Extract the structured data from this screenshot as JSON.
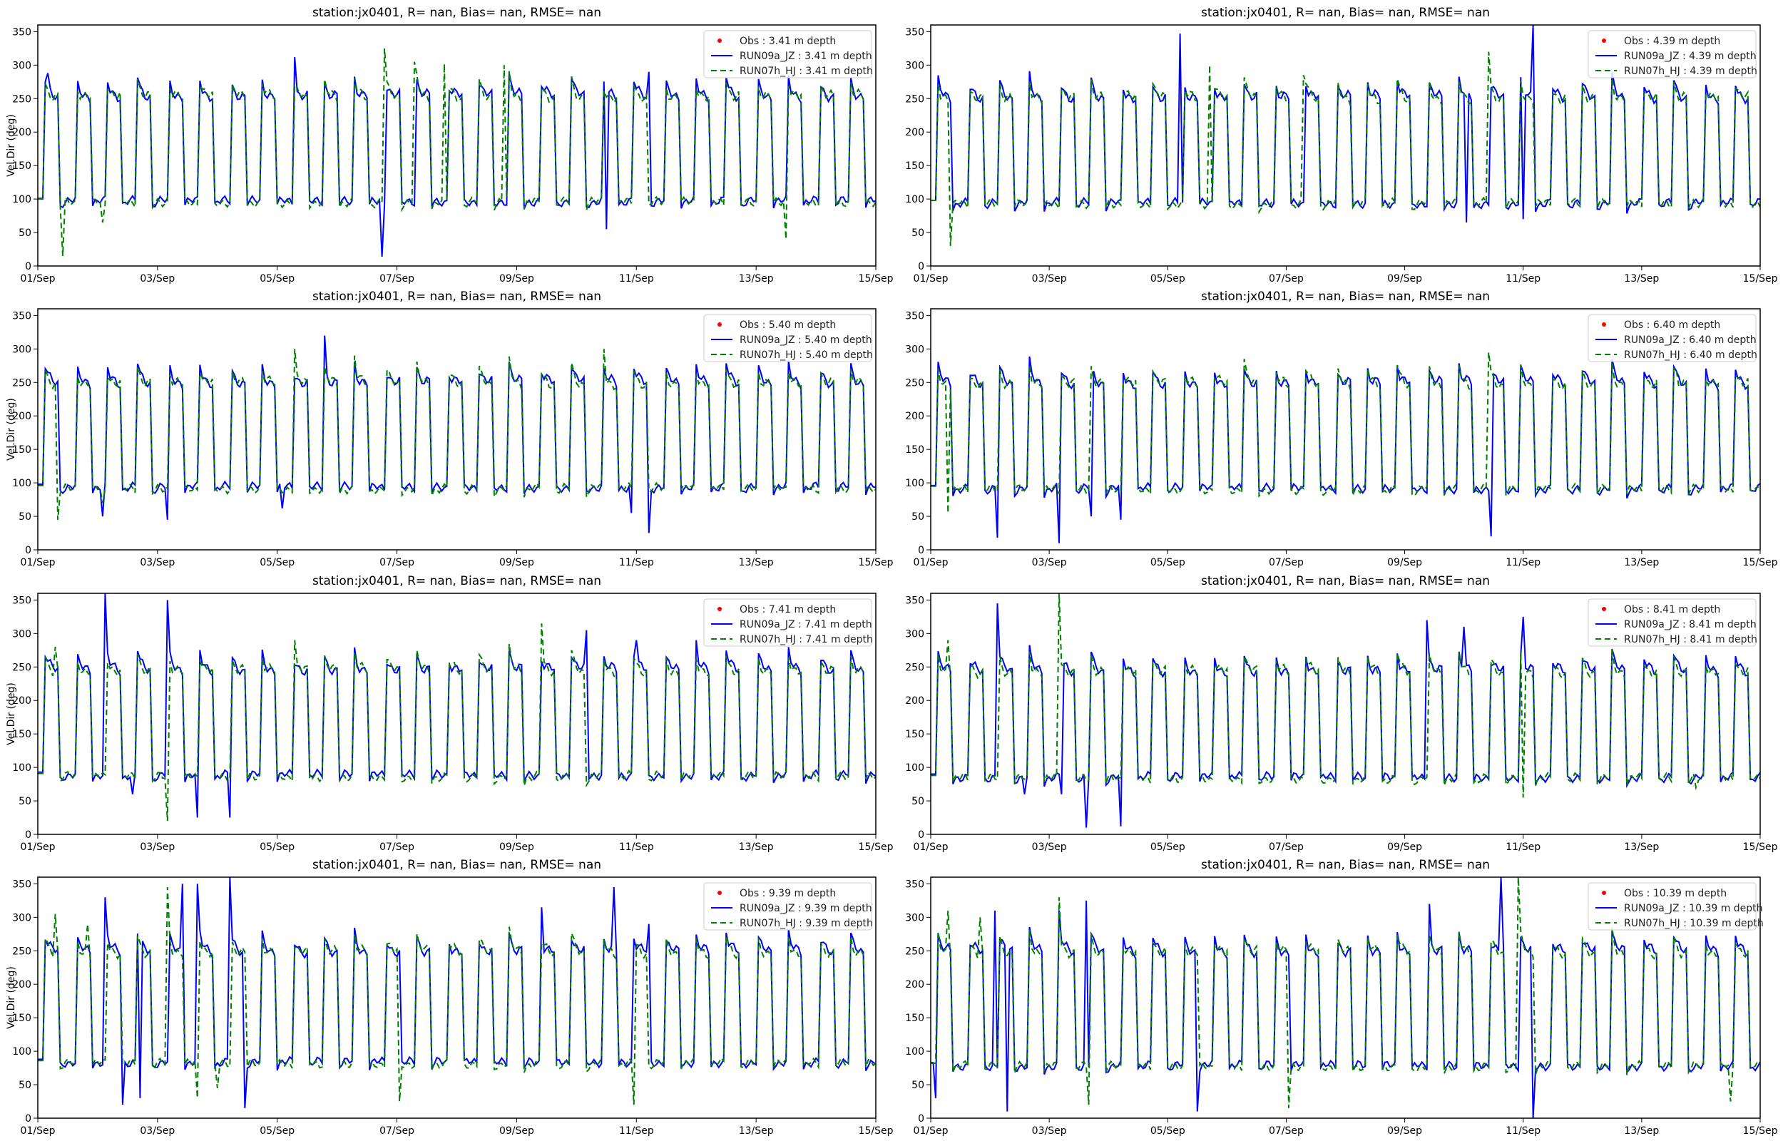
{
  "chart_data": {
    "type": "line",
    "layout": "4x2 grid",
    "x_ticks": [
      "01/Sep",
      "03/Sep",
      "05/Sep",
      "07/Sep",
      "09/Sep",
      "11/Sep",
      "13/Sep",
      "15/Sep"
    ],
    "xlim_days": [
      0,
      14
    ],
    "ylim": [
      0,
      360
    ],
    "y_ticks": [
      0,
      50,
      100,
      150,
      200,
      250,
      300,
      350
    ],
    "ylabel": "Vel.Dir (deg)",
    "legend_placement": "top-right",
    "tidal_period_hours": 12.42,
    "first_rise_hours": 2.7,
    "high_duration_hours": 6.0,
    "colors": {
      "obs": "#ff0000",
      "run09a": "#0000ff",
      "run07h": "#008000"
    },
    "panels": [
      {
        "title": "station:jx0401, R=   nan, Bias=    nan, RMSE=    nan",
        "legend": [
          "Obs : 3.41 m depth",
          "RUN09a_JZ : 3.41 m depth",
          "RUN07h_HJ : 3.41 m depth"
        ],
        "ylabel_shown": true,
        "series": [
          {
            "name": "RUN09a_JZ",
            "high": 260,
            "low": 93,
            "spikes": [
              [
                5.75,
                14
              ],
              [
                4.3,
                312
              ],
              [
                10.2,
                290
              ],
              [
                9.5,
                55
              ],
              [
                0.15,
                288
              ]
            ]
          },
          {
            "name": "RUN07h_HJ",
            "high": 258,
            "low": 92,
            "spikes": [
              [
                0.4,
                15
              ],
              [
                5.8,
                325
              ],
              [
                12.5,
                40
              ],
              [
                6.3,
                305
              ],
              [
                6.8,
                302
              ],
              [
                7.8,
                300
              ],
              [
                1.1,
                65
              ]
            ]
          }
        ]
      },
      {
        "title": "station:jx0401, R=   nan, Bias=    nan, RMSE=    nan",
        "legend": [
          "Obs : 4.39 m depth",
          "RUN09a_JZ : 4.39 m depth",
          "RUN07h_HJ : 4.39 m depth"
        ],
        "ylabel_shown": false,
        "series": [
          {
            "name": "RUN09a_JZ",
            "high": 258,
            "low": 90,
            "spikes": [
              [
                4.2,
                347
              ],
              [
                10.17,
                360
              ],
              [
                9.05,
                65
              ],
              [
                10.0,
                70
              ]
            ]
          },
          {
            "name": "RUN07h_HJ",
            "high": 256,
            "low": 90,
            "spikes": [
              [
                0.33,
                30
              ],
              [
                9.4,
                320
              ],
              [
                4.7,
                300
              ],
              [
                6.3,
                285
              ]
            ]
          }
        ]
      },
      {
        "title": "station:jx0401, R=   nan, Bias=    nan, RMSE=    nan",
        "legend": [
          "Obs : 5.40 m depth",
          "RUN09a_JZ : 5.40 m depth",
          "RUN07h_HJ : 5.40 m depth"
        ],
        "ylabel_shown": true,
        "series": [
          {
            "name": "RUN09a_JZ",
            "high": 256,
            "low": 90,
            "spikes": [
              [
                4.8,
                320
              ],
              [
                10.2,
                25
              ],
              [
                2.16,
                45
              ],
              [
                1.1,
                50
              ],
              [
                4.1,
                62
              ],
              [
                9.9,
                55
              ]
            ]
          },
          {
            "name": "RUN07h_HJ",
            "high": 254,
            "low": 88,
            "spikes": [
              [
                0.33,
                45
              ],
              [
                4.3,
                300
              ],
              [
                9.45,
                300
              ],
              [
                5.3,
                290
              ],
              [
                1.1,
                70
              ]
            ]
          }
        ]
      },
      {
        "title": "station:jx0401, R=   nan, Bias=    nan, RMSE=    nan",
        "legend": [
          "Obs : 6.40 m depth",
          "RUN09a_JZ : 6.40 m depth",
          "RUN07h_HJ : 6.40 m depth"
        ],
        "ylabel_shown": false,
        "series": [
          {
            "name": "RUN09a_JZ",
            "high": 255,
            "low": 88,
            "spikes": [
              [
                2.16,
                10
              ],
              [
                1.12,
                18
              ],
              [
                9.44,
                20
              ],
              [
                3.2,
                45
              ],
              [
                2.7,
                50
              ]
            ]
          },
          {
            "name": "RUN07h_HJ",
            "high": 253,
            "low": 87,
            "spikes": [
              [
                9.42,
                295
              ],
              [
                0.3,
                55
              ],
              [
                5.3,
                285
              ],
              [
                12.6,
                270
              ]
            ]
          }
        ]
      },
      {
        "title": "station:jx0401, R=   nan, Bias=    nan, RMSE=    nan",
        "legend": [
          "Obs : 7.41 m depth",
          "RUN09a_JZ : 7.41 m depth",
          "RUN07h_HJ : 7.41 m depth"
        ],
        "ylabel_shown": true,
        "series": [
          {
            "name": "RUN09a_JZ",
            "high": 252,
            "low": 85,
            "spikes": [
              [
                1.12,
                360
              ],
              [
                2.16,
                350
              ],
              [
                2.66,
                25
              ],
              [
                3.2,
                25
              ],
              [
                9.15,
                305
              ],
              [
                1.6,
                60
              ],
              [
                10.0,
                290
              ],
              [
                11.0,
                290
              ]
            ]
          },
          {
            "name": "RUN07h_HJ",
            "high": 250,
            "low": 83,
            "spikes": [
              [
                2.16,
                20
              ],
              [
                8.42,
                315
              ],
              [
                0.3,
                280
              ],
              [
                4.3,
                290
              ]
            ]
          }
        ]
      },
      {
        "title": "station:jx0401, R=   nan, Bias=    nan, RMSE=    nan",
        "legend": [
          "Obs : 8.41 m depth",
          "RUN09a_JZ : 8.41 m depth",
          "RUN07h_HJ : 8.41 m depth"
        ],
        "ylabel_shown": false,
        "series": [
          {
            "name": "RUN09a_JZ",
            "high": 250,
            "low": 82,
            "spikes": [
              [
                1.12,
                345
              ],
              [
                2.64,
                10
              ],
              [
                3.2,
                12
              ],
              [
                8.38,
                320
              ],
              [
                10.0,
                325
              ],
              [
                9.0,
                310
              ],
              [
                1.6,
                60
              ],
              [
                2.2,
                60
              ]
            ]
          },
          {
            "name": "RUN07h_HJ",
            "high": 248,
            "low": 80,
            "spikes": [
              [
                2.16,
                360
              ],
              [
                0.3,
                290
              ],
              [
                10.0,
                55
              ],
              [
                12.9,
                70
              ]
            ]
          }
        ]
      },
      {
        "title": "station:jx0401, R=   nan, Bias=    nan, RMSE=    nan",
        "legend": [
          "Obs : 9.39 m depth",
          "RUN09a_JZ : 9.39 m depth",
          "RUN07h_HJ : 9.39 m depth"
        ],
        "ylabel_shown": true,
        "series": [
          {
            "name": "RUN09a_JZ",
            "high": 255,
            "low": 80,
            "spikes": [
              [
                1.12,
                330
              ],
              [
                2.43,
                350
              ],
              [
                2.68,
                350
              ],
              [
                3.2,
                360
              ],
              [
                3.47,
                15
              ],
              [
                9.63,
                345
              ],
              [
                1.4,
                20
              ],
              [
                1.7,
                30
              ],
              [
                8.4,
                315
              ],
              [
                10.2,
                290
              ]
            ]
          },
          {
            "name": "RUN07h_HJ",
            "high": 253,
            "low": 78,
            "spikes": [
              [
                2.16,
                345
              ],
              [
                2.68,
                30
              ],
              [
                9.94,
                20
              ],
              [
                0.3,
                305
              ],
              [
                0.85,
                290
              ],
              [
                3.0,
                45
              ],
              [
                6.05,
                25
              ]
            ]
          }
        ]
      },
      {
        "title": "station:jx0401, R=   nan, Bias=    nan, RMSE=    nan",
        "legend": [
          "Obs : 10.39 m depth",
          "RUN09a_JZ : 10.39 m depth",
          "RUN07h_HJ : 10.39 m depth"
        ],
        "ylabel_shown": false,
        "series": [
          {
            "name": "RUN09a_JZ",
            "high": 255,
            "low": 75,
            "spikes": [
              [
                1.3,
                10
              ],
              [
                9.63,
                360
              ],
              [
                10.17,
                0
              ],
              [
                2.64,
                325
              ],
              [
                4.5,
                10
              ],
              [
                1.1,
                310
              ],
              [
                2.16,
                310
              ],
              [
                8.4,
                320
              ],
              [
                0.1,
                30
              ]
            ]
          },
          {
            "name": "RUN07h_HJ",
            "high": 253,
            "low": 74,
            "spikes": [
              [
                9.9,
                360
              ],
              [
                2.16,
                330
              ],
              [
                0.3,
                310
              ],
              [
                0.85,
                300
              ],
              [
                2.65,
                20
              ],
              [
                6.05,
                15
              ],
              [
                13.5,
                25
              ]
            ]
          }
        ]
      }
    ]
  }
}
